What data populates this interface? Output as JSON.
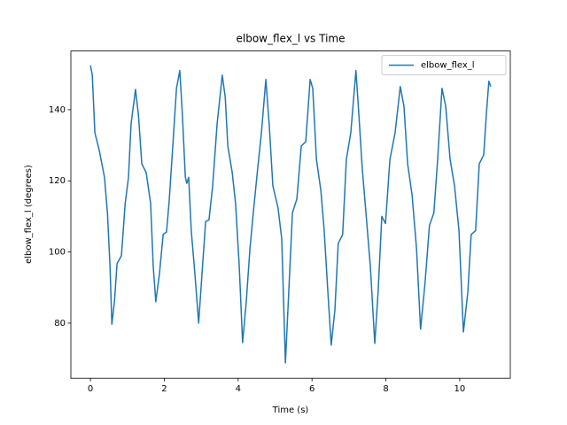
{
  "chart_data": {
    "type": "line",
    "title": "elbow_flex_l vs Time",
    "x_label": "Time (s)",
    "y_label": "elbow_flex_l (degrees)",
    "x": [
      0,
      0.05,
      0.12,
      0.24,
      0.38,
      0.46,
      0.53,
      0.58,
      0.65,
      0.72,
      0.84,
      0.94,
      1.03,
      1.1,
      1.22,
      1.3,
      1.39,
      1.51,
      1.63,
      1.7,
      1.77,
      1.87,
      1.97,
      2.06,
      2.13,
      2.23,
      2.33,
      2.42,
      2.49,
      2.57,
      2.61,
      2.66,
      2.73,
      2.83,
      2.93,
      3.02,
      3.12,
      3.21,
      3.31,
      3.43,
      3.57,
      3.65,
      3.72,
      3.84,
      3.93,
      4.03,
      4.12,
      4.22,
      4.32,
      4.41,
      4.53,
      4.63,
      4.75,
      4.84,
      4.94,
      5.08,
      5.18,
      5.28,
      5.37,
      5.47,
      5.59,
      5.71,
      5.83,
      5.95,
      6.02,
      6.12,
      6.24,
      6.33,
      6.43,
      6.52,
      6.62,
      6.71,
      6.83,
      6.93,
      7.05,
      7.19,
      7.27,
      7.36,
      7.48,
      7.58,
      7.7,
      7.79,
      7.89,
      7.99,
      8.11,
      8.25,
      8.39,
      8.49,
      8.59,
      8.71,
      8.83,
      8.94,
      9.06,
      9.18,
      9.3,
      9.4,
      9.52,
      9.62,
      9.74,
      9.86,
      9.98,
      10.1,
      10.22,
      10.31,
      10.43,
      10.53,
      10.65,
      10.72,
      10.79,
      10.84
    ],
    "series": [
      {
        "name": "elbow_flex_l",
        "color": "#1f77b4",
        "values": [
          152.4,
          149.7,
          133.5,
          128.5,
          121,
          111,
          96,
          79.7,
          86,
          96.7,
          99,
          113.6,
          121,
          136,
          145.7,
          138.5,
          124.8,
          122.3,
          113.6,
          96,
          86,
          94,
          105,
          105.6,
          114,
          129.8,
          146,
          151,
          138.5,
          121,
          119.3,
          121,
          106,
          93.7,
          80,
          93.7,
          108.6,
          109,
          118.6,
          136,
          149.7,
          143.5,
          129.8,
          122.3,
          113.6,
          96,
          74.5,
          86,
          101,
          111,
          123.6,
          133.5,
          148.5,
          136,
          118.6,
          112.4,
          103.7,
          68.8,
          88.7,
          111,
          114.9,
          129.8,
          131,
          148.5,
          146,
          126,
          117.3,
          106,
          88.7,
          73.8,
          83.7,
          102.4,
          104.9,
          126,
          133.5,
          151,
          138.5,
          123.6,
          108.6,
          96,
          74.3,
          88.7,
          110,
          108,
          126,
          133.5,
          146.5,
          141,
          124.8,
          116,
          101,
          78.3,
          91.2,
          107.4,
          111,
          125.6,
          146,
          141,
          126,
          118.6,
          106,
          77.5,
          88.7,
          104.9,
          106,
          124.8,
          127.3,
          138.5,
          148,
          146.5
        ]
      }
    ],
    "xlim": [
      -0.53,
      11.37
    ],
    "xticks": [
      0,
      2,
      4,
      6,
      8,
      10
    ],
    "ylim": [
      64.5,
      156.5
    ],
    "yticks": [
      80,
      100,
      120,
      140
    ],
    "legend": "upper right"
  }
}
